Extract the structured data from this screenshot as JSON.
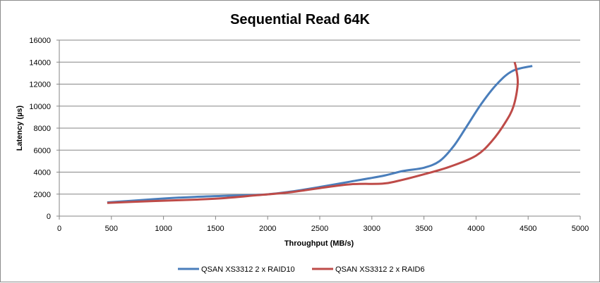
{
  "chart_data": {
    "type": "line",
    "title": "Sequential Read 64K",
    "xlabel": "Throughput (MB/s)",
    "ylabel": "Latency (µs)",
    "xlim": [
      0,
      5000
    ],
    "ylim": [
      0,
      16000
    ],
    "xticks": [
      "0",
      "500",
      "1000",
      "1500",
      "2000",
      "2500",
      "3000",
      "3500",
      "4000",
      "4500",
      "5000"
    ],
    "yticks": [
      "0",
      "2000",
      "4000",
      "6000",
      "8000",
      "10000",
      "12000",
      "14000",
      "16000"
    ],
    "grid": "horizontal",
    "legend": "bottom",
    "series": [
      {
        "name": "QSAN XS3312 2 x RAID10",
        "color": "#4a7ebb",
        "x": [
          460,
          700,
          1000,
          1300,
          1600,
          1950,
          2200,
          2500,
          2800,
          3100,
          3300,
          3500,
          3650,
          3780,
          3900,
          4050,
          4200,
          4350,
          4540
        ],
        "y": [
          1250,
          1400,
          1600,
          1750,
          1850,
          1950,
          2200,
          2650,
          3150,
          3650,
          4100,
          4400,
          5000,
          6300,
          8000,
          10200,
          12000,
          13200,
          13650
        ]
      },
      {
        "name": "QSAN XS3312 2 x RAID6",
        "color": "#be4b48",
        "x": [
          460,
          700,
          1000,
          1300,
          1600,
          1900,
          2200,
          2500,
          2800,
          3100,
          3250,
          3500,
          3750,
          4000,
          4150,
          4280,
          4360,
          4400,
          4385,
          4370
        ],
        "y": [
          1200,
          1300,
          1400,
          1500,
          1650,
          1900,
          2150,
          2550,
          2900,
          2950,
          3200,
          3800,
          4500,
          5500,
          6800,
          8500,
          10000,
          12000,
          13400,
          14000
        ]
      }
    ]
  }
}
